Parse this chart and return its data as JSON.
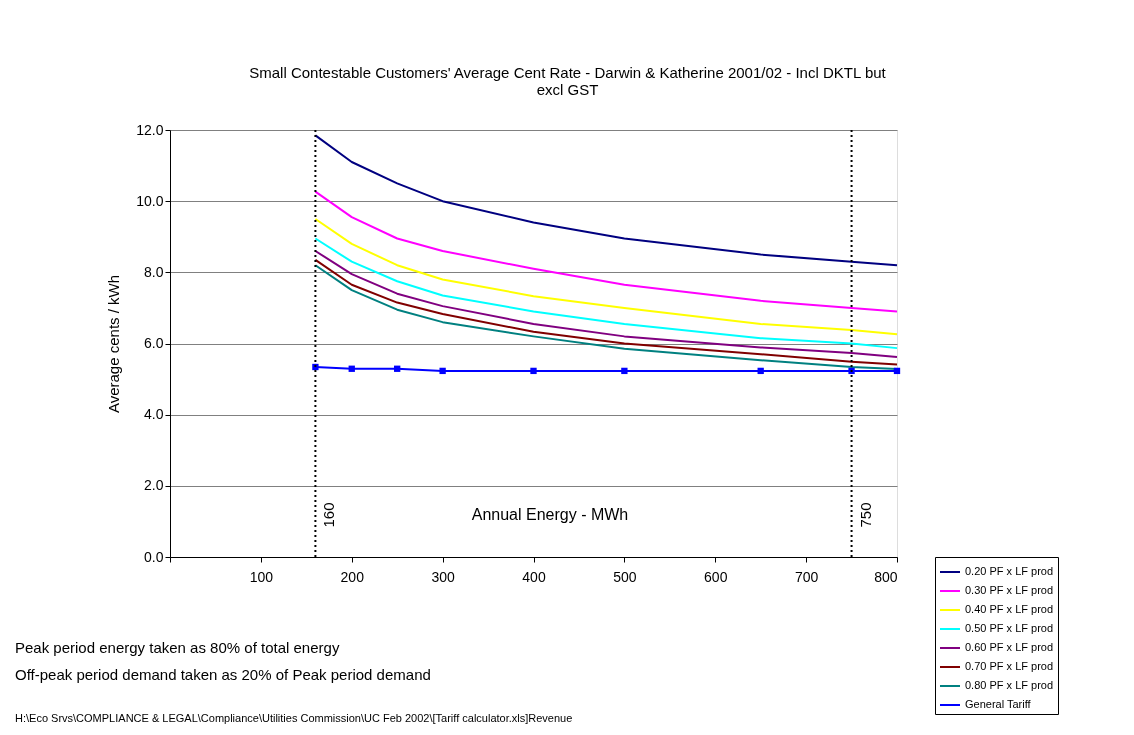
{
  "chart_data": {
    "type": "line",
    "title": "Small  Contestable Customers' Average Cent Rate - Darwin & Katherine 2001/02 - Incl DKTL but excl GST",
    "xlabel": "Annual Energy - MWh",
    "ylabel": "Average cents / kWh",
    "x": [
      160,
      200,
      250,
      300,
      400,
      500,
      650,
      750,
      800
    ],
    "xlim": [
      0,
      800
    ],
    "xticks": [
      {
        "value": 0,
        "label": null
      },
      100,
      200,
      300,
      400,
      500,
      600,
      700,
      800
    ],
    "ylim": [
      0,
      12
    ],
    "yticks": [
      {
        "value": 0,
        "label": "0.0"
      },
      {
        "value": 2,
        "label": "2.0"
      },
      {
        "value": 4,
        "label": "4.0"
      },
      {
        "value": 6,
        "label": "6.0"
      },
      {
        "value": 8,
        "label": "8.0"
      },
      {
        "value": 10,
        "label": "10.0"
      },
      {
        "value": 12,
        "label": "12.0"
      }
    ],
    "grid": "y",
    "legend": "bottom right",
    "line_style": "solid",
    "series": [
      {
        "name": "0.20 PF x LF prod",
        "color": "#000080",
        "marker": "none",
        "values": [
          11.85,
          11.1,
          10.5,
          10.0,
          9.4,
          8.95,
          8.5,
          8.3,
          8.2
        ]
      },
      {
        "name": "0.30 PF x LF prod",
        "color": "#ff00ff",
        "marker": "none",
        "values": [
          10.27,
          9.55,
          8.95,
          8.6,
          8.1,
          7.65,
          7.2,
          7.0,
          6.9
        ]
      },
      {
        "name": "0.40 PF x LF prod",
        "color": "#ffff00",
        "marker": "none",
        "values": [
          9.5,
          8.8,
          8.2,
          7.8,
          7.33,
          7.0,
          6.55,
          6.38,
          6.26
        ]
      },
      {
        "name": "0.50 PF x LF prod",
        "color": "#00ffff",
        "marker": "none",
        "values": [
          8.95,
          8.3,
          7.75,
          7.35,
          6.9,
          6.55,
          6.15,
          6.0,
          5.87
        ]
      },
      {
        "name": "0.60 PF x LF prod",
        "color": "#800080",
        "marker": "none",
        "values": [
          8.6,
          7.95,
          7.4,
          7.05,
          6.55,
          6.2,
          5.89,
          5.73,
          5.62
        ]
      },
      {
        "name": "0.70 PF x LF prod",
        "color": "#800000",
        "marker": "none",
        "values": [
          8.35,
          7.65,
          7.15,
          6.83,
          6.33,
          6.0,
          5.7,
          5.49,
          5.41
        ]
      },
      {
        "name": "0.80 PF x LF prod",
        "color": "#008080",
        "marker": "none",
        "values": [
          8.2,
          7.5,
          6.95,
          6.6,
          6.2,
          5.85,
          5.53,
          5.34,
          5.28
        ]
      },
      {
        "name": "General Tariff",
        "color": "#0000ff",
        "marker": "square",
        "values": [
          5.34,
          5.29,
          5.29,
          5.23,
          5.23,
          5.23,
          5.23,
          5.23,
          5.23
        ]
      }
    ],
    "ref_lines": [
      {
        "axis": "x",
        "value": 160,
        "label": "160",
        "color": "#000000",
        "line_style": "dotted"
      },
      {
        "axis": "x",
        "value": 750,
        "label": "750",
        "color": "#000000",
        "line_style": "dotted"
      }
    ],
    "annotations": [
      "Peak period energy taken as 80% of total energy",
      "Off-peak period demand taken as 20% of Peak period demand",
      "H:\\Eco Srvs\\COMPLIANCE & LEGAL\\Compliance\\Utilities Commission\\UC Feb 2002\\[Tariff calculator.xls]Revenue"
    ]
  }
}
